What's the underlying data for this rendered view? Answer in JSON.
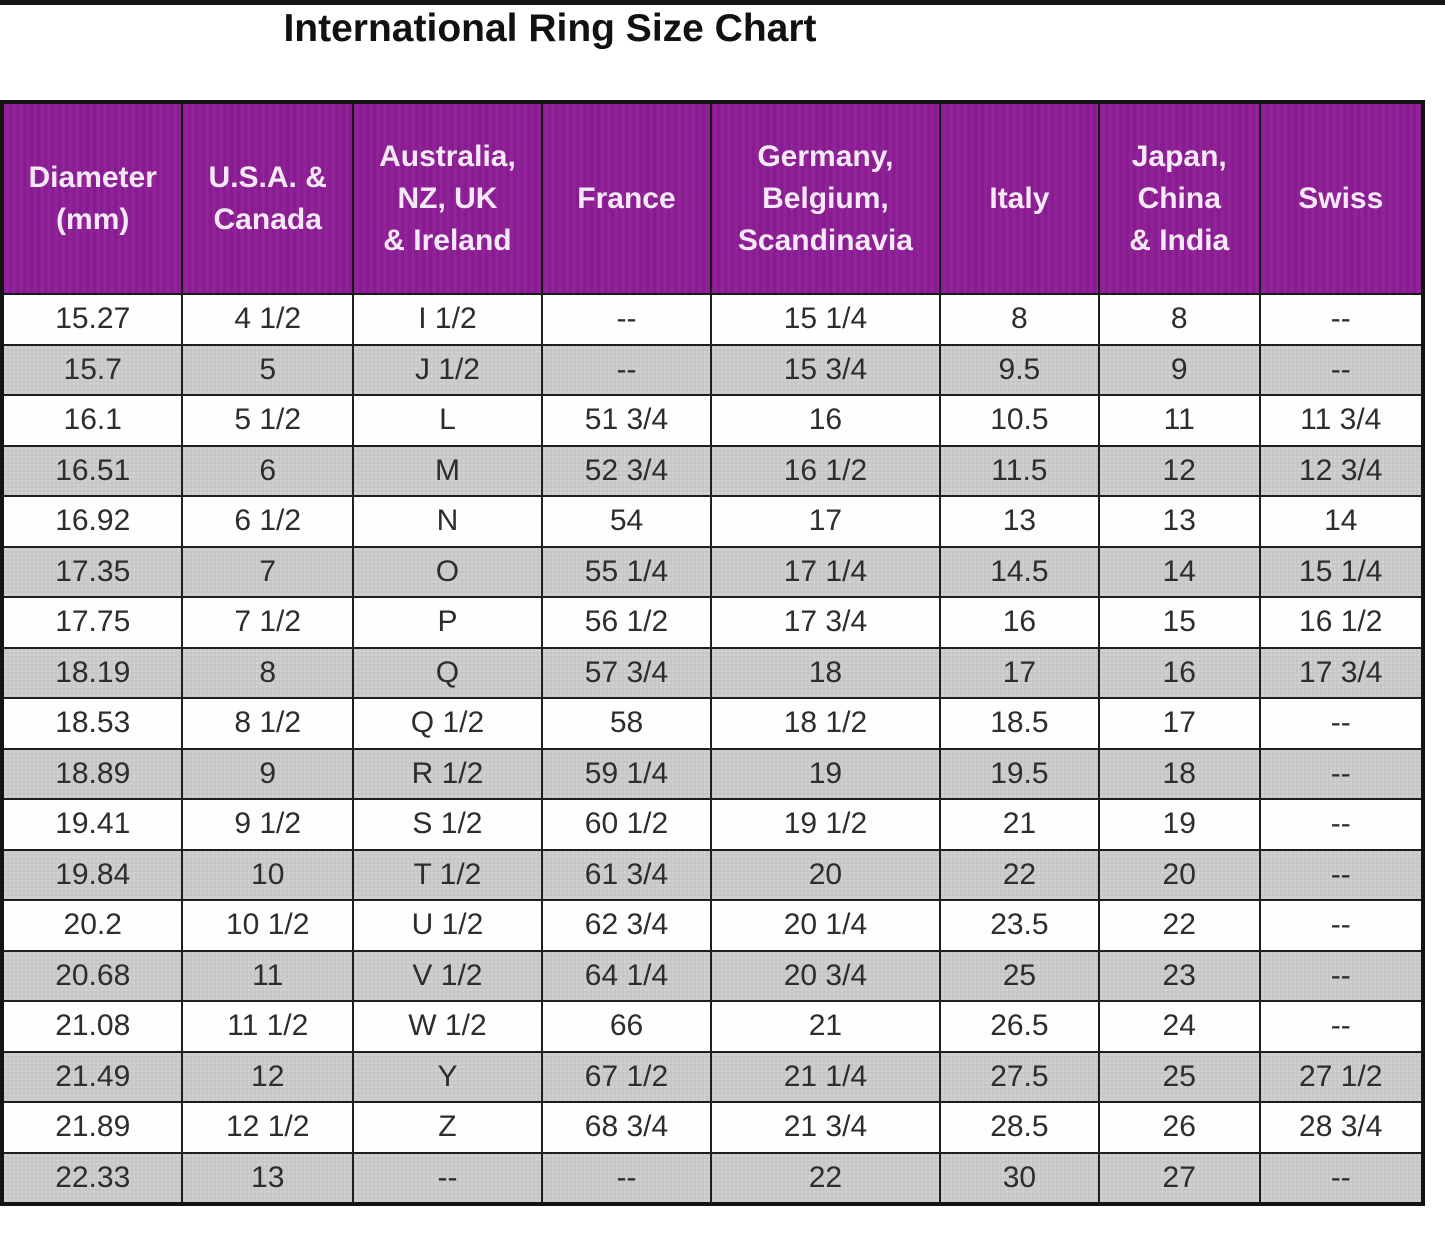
{
  "title": "International Ring Size Chart",
  "colors": {
    "header_bg": "#8e1d96",
    "header_text": "#f6e9f7",
    "alt_row_bg": "#c9c9c9",
    "border": "#1a1a1a",
    "text": "#2d2d2d"
  },
  "chart_data": {
    "type": "table",
    "title": "International Ring Size Chart",
    "columns": [
      "Diameter\n(mm)",
      "U.S.A. &\nCanada",
      "Australia,\nNZ, UK\n& Ireland",
      "France",
      "Germany,\nBelgium,\nScandinavia",
      "Italy",
      "Japan,\nChina\n& India",
      "Swiss"
    ],
    "rows": [
      [
        "15.27",
        "4 1/2",
        "I 1/2",
        "--",
        "15 1/4",
        "8",
        "8",
        "--"
      ],
      [
        "15.7",
        "5",
        "J 1/2",
        "--",
        "15 3/4",
        "9.5",
        "9",
        "--"
      ],
      [
        "16.1",
        "5 1/2",
        "L",
        "51 3/4",
        "16",
        "10.5",
        "11",
        "11 3/4"
      ],
      [
        "16.51",
        "6",
        "M",
        "52 3/4",
        "16 1/2",
        "11.5",
        "12",
        "12 3/4"
      ],
      [
        "16.92",
        "6 1/2",
        "N",
        "54",
        "17",
        "13",
        "13",
        "14"
      ],
      [
        "17.35",
        "7",
        "O",
        "55 1/4",
        "17 1/4",
        "14.5",
        "14",
        "15 1/4"
      ],
      [
        "17.75",
        "7 1/2",
        "P",
        "56 1/2",
        "17 3/4",
        "16",
        "15",
        "16 1/2"
      ],
      [
        "18.19",
        "8",
        "Q",
        "57 3/4",
        "18",
        "17",
        "16",
        "17 3/4"
      ],
      [
        "18.53",
        "8 1/2",
        "Q 1/2",
        "58",
        "18 1/2",
        "18.5",
        "17",
        "--"
      ],
      [
        "18.89",
        "9",
        "R 1/2",
        "59 1/4",
        "19",
        "19.5",
        "18",
        "--"
      ],
      [
        "19.41",
        "9 1/2",
        "S 1/2",
        "60 1/2",
        "19 1/2",
        "21",
        "19",
        "--"
      ],
      [
        "19.84",
        "10",
        "T 1/2",
        "61 3/4",
        "20",
        "22",
        "20",
        "--"
      ],
      [
        "20.2",
        "10 1/2",
        "U 1/2",
        "62 3/4",
        "20 1/4",
        "23.5",
        "22",
        "--"
      ],
      [
        "20.68",
        "11",
        "V 1/2",
        "64 1/4",
        "20 3/4",
        "25",
        "23",
        "--"
      ],
      [
        "21.08",
        "11 1/2",
        "W 1/2",
        "66",
        "21",
        "26.5",
        "24",
        "--"
      ],
      [
        "21.49",
        "12",
        "Y",
        "67 1/2",
        "21 1/4",
        "27.5",
        "25",
        "27 1/2"
      ],
      [
        "21.89",
        "12 1/2",
        "Z",
        "68 3/4",
        "21 3/4",
        "28.5",
        "26",
        "28 3/4"
      ],
      [
        "22.33",
        "13",
        "--",
        "--",
        "22",
        "30",
        "27",
        "--"
      ]
    ]
  }
}
